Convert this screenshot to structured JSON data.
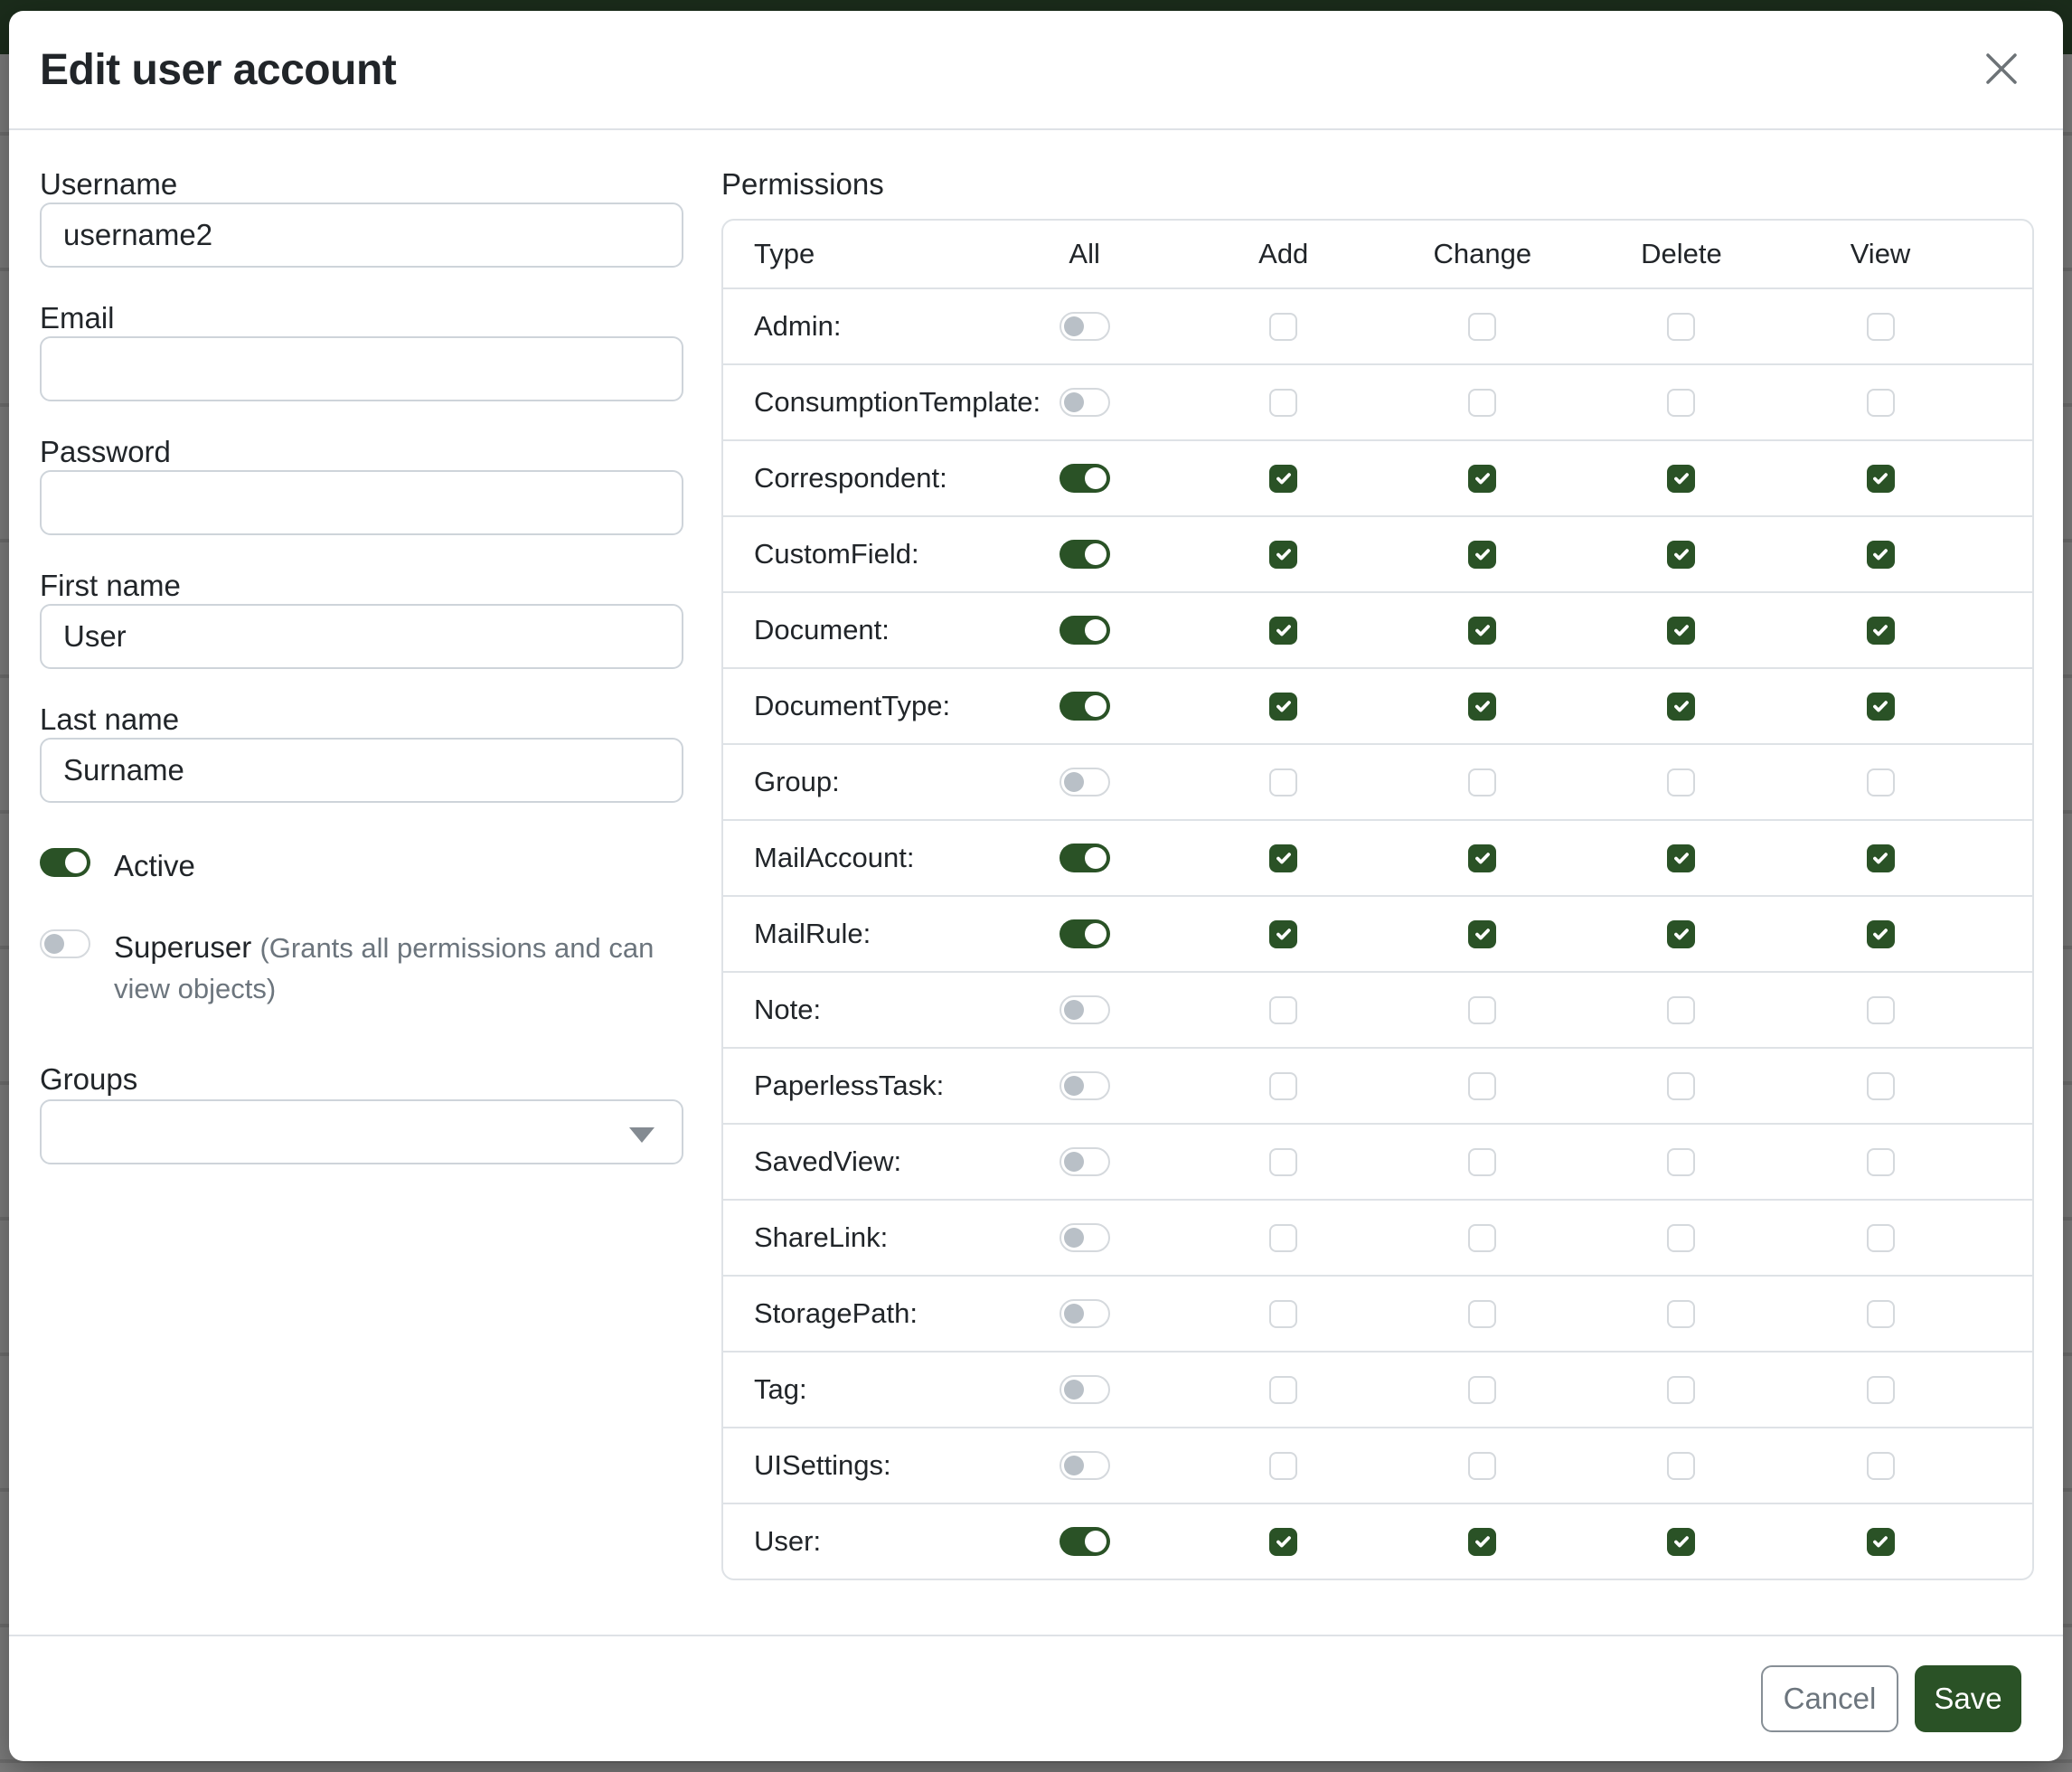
{
  "colors": {
    "primary_green": "#2a5226",
    "navbar_dimmed_green": "#1b2c1b",
    "backdrop_gray": "#7d7d7d"
  },
  "modal": {
    "title": "Edit user account",
    "close_icon": "x-icon",
    "form": {
      "fields": [
        {
          "label": "Username",
          "value": "username2",
          "placeholder": ""
        },
        {
          "label": "Email",
          "value": "",
          "placeholder": ""
        },
        {
          "label": "Password",
          "value": "",
          "placeholder": ""
        },
        {
          "label": "First name",
          "value": "User",
          "placeholder": ""
        },
        {
          "label": "Last name",
          "value": "Surname",
          "placeholder": ""
        }
      ],
      "toggles": [
        {
          "label": "Active",
          "hint": "",
          "on": true
        },
        {
          "label": "Superuser",
          "hint": "(Grants all permissions and can view objects)",
          "on": false
        }
      ],
      "groups": {
        "label": "Groups",
        "value": "",
        "icon": "caret-down-icon"
      }
    },
    "permissions": {
      "section_label": "Permissions",
      "columns": [
        "Type",
        "All",
        "Add",
        "Change",
        "Delete",
        "View"
      ],
      "rows": [
        {
          "type": "Admin:",
          "all": false,
          "add": false,
          "change": false,
          "delete": false,
          "view": false
        },
        {
          "type": "ConsumptionTemplate:",
          "all": false,
          "add": false,
          "change": false,
          "delete": false,
          "view": false
        },
        {
          "type": "Correspondent:",
          "all": true,
          "add": true,
          "change": true,
          "delete": true,
          "view": true
        },
        {
          "type": "CustomField:",
          "all": true,
          "add": true,
          "change": true,
          "delete": true,
          "view": true
        },
        {
          "type": "Document:",
          "all": true,
          "add": true,
          "change": true,
          "delete": true,
          "view": true
        },
        {
          "type": "DocumentType:",
          "all": true,
          "add": true,
          "change": true,
          "delete": true,
          "view": true
        },
        {
          "type": "Group:",
          "all": false,
          "add": false,
          "change": false,
          "delete": false,
          "view": false
        },
        {
          "type": "MailAccount:",
          "all": true,
          "add": true,
          "change": true,
          "delete": true,
          "view": true
        },
        {
          "type": "MailRule:",
          "all": true,
          "add": true,
          "change": true,
          "delete": true,
          "view": true
        },
        {
          "type": "Note:",
          "all": false,
          "add": false,
          "change": false,
          "delete": false,
          "view": false
        },
        {
          "type": "PaperlessTask:",
          "all": false,
          "add": false,
          "change": false,
          "delete": false,
          "view": false
        },
        {
          "type": "SavedView:",
          "all": false,
          "add": false,
          "change": false,
          "delete": false,
          "view": false
        },
        {
          "type": "ShareLink:",
          "all": false,
          "add": false,
          "change": false,
          "delete": false,
          "view": false
        },
        {
          "type": "StoragePath:",
          "all": false,
          "add": false,
          "change": false,
          "delete": false,
          "view": false
        },
        {
          "type": "Tag:",
          "all": false,
          "add": false,
          "change": false,
          "delete": false,
          "view": false
        },
        {
          "type": "UISettings:",
          "all": false,
          "add": false,
          "change": false,
          "delete": false,
          "view": false
        },
        {
          "type": "User:",
          "all": true,
          "add": true,
          "change": true,
          "delete": true,
          "view": true
        }
      ]
    },
    "footer": {
      "cancel_label": "Cancel",
      "save_label": "Save"
    }
  }
}
